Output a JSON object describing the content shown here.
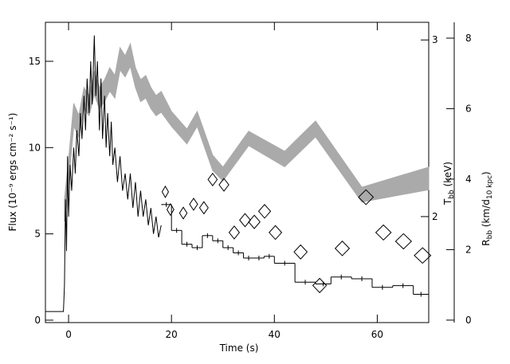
{
  "chart_data": {
    "type": "multi",
    "xlabel": "Time (s)",
    "ylabel": "Flux (10⁻⁹ ergs cm⁻² s⁻¹)",
    "y2label": [
      "T",
      "bb",
      " (keV)"
    ],
    "y3label": [
      "R",
      "bb",
      " (km/d",
      "10 kpc",
      ")"
    ],
    "xlim": [
      -4.5,
      70
    ],
    "xticks": [
      0,
      20,
      40,
      60
    ],
    "ylim": [
      -0.14,
      17.26
    ],
    "yticks": [
      0,
      5,
      10,
      15
    ],
    "y2lim": [
      1.4,
      3.1
    ],
    "y2ticks": [
      2,
      3
    ],
    "y3lim": [
      -0.07,
      8.45
    ],
    "y3ticks": [
      0,
      2,
      4,
      6,
      8
    ],
    "series": [
      {
        "type": "band",
        "axis": "y3",
        "color": "#aaaaaa",
        "x": [
          -0.8,
          0,
          1,
          2,
          3,
          4,
          5,
          6,
          7,
          8,
          9,
          10,
          11,
          12,
          13,
          14,
          15,
          16,
          17,
          18,
          20,
          23,
          25,
          28,
          30,
          35,
          42,
          48,
          57,
          70
        ],
        "high": [
          3.43,
          4.56,
          6.15,
          5.81,
          6.6,
          6.37,
          7.05,
          6.6,
          6.82,
          7.16,
          6.94,
          7.73,
          7.5,
          7.84,
          7.16,
          6.82,
          6.94,
          6.6,
          6.37,
          6.49,
          5.92,
          5.42,
          5.92,
          4.68,
          4.34,
          5.36,
          4.79,
          5.65,
          3.77,
          4.34
        ],
        "low": [
          2.8,
          3.9,
          5.5,
          5.2,
          6.0,
          5.8,
          6.4,
          6.0,
          6.2,
          6.5,
          6.3,
          7.1,
          6.9,
          7.2,
          6.6,
          6.2,
          6.3,
          6.0,
          5.8,
          5.9,
          5.5,
          5.0,
          5.5,
          4.25,
          3.95,
          4.95,
          4.35,
          5.2,
          3.35,
          3.7
        ]
      },
      {
        "type": "line",
        "color": "#000000",
        "x": [
          -4.5,
          -1,
          -0.8,
          -0.6,
          -0.4,
          -0.2,
          0,
          0.3,
          0.6,
          1,
          1.3,
          1.6,
          2,
          2.3,
          2.6,
          3,
          3.3,
          3.6,
          4,
          4.3,
          4.6,
          5,
          5.3,
          5.6,
          6,
          6.3,
          6.6,
          7,
          7.3,
          7.6,
          8,
          8.3,
          8.6,
          9,
          9.5,
          10,
          10.5,
          11,
          11.5,
          12,
          12.5,
          13,
          13.5,
          14,
          14.5,
          15,
          15.5,
          16,
          16.5,
          17,
          17.5,
          18
        ],
        "values": [
          0.5,
          0.5,
          2,
          7,
          4,
          9.5,
          6,
          9,
          7.5,
          10,
          8.5,
          11,
          9.5,
          12,
          10.5,
          13,
          11,
          14,
          12,
          15,
          12.5,
          16.5,
          13,
          15,
          11,
          14,
          10.5,
          13,
          10,
          12,
          9.5,
          11.5,
          9,
          10,
          8,
          9.5,
          7.5,
          8.5,
          7,
          8.5,
          6.5,
          8,
          6,
          7.5,
          6,
          7,
          5.5,
          6.5,
          5,
          6,
          4.8,
          5.5
        ]
      },
      {
        "type": "step",
        "color": "#000000",
        "bins": [
          18,
          20,
          22,
          24,
          26,
          28,
          30,
          32,
          34,
          36,
          38,
          40,
          44,
          48,
          51,
          55,
          59,
          63,
          67,
          70
        ],
        "values": [
          6.7,
          5.2,
          4.4,
          4.2,
          4.9,
          4.6,
          4.2,
          3.9,
          3.6,
          3.6,
          3.7,
          3.3,
          2.2,
          2.1,
          2.5,
          2.4,
          1.9,
          2.0,
          1.5
        ]
      },
      {
        "type": "scatter",
        "axis": "y2",
        "color": "#000000",
        "x": [
          18.8,
          19.8,
          22.3,
          24.3,
          26.3,
          28,
          30.2,
          32.2,
          34.3,
          36.1,
          38.1,
          40.2,
          45.1,
          48.8,
          53.2,
          57.8,
          61.2,
          65.1,
          68.8
        ],
        "values": [
          2.14,
          2.04,
          2.02,
          2.07,
          2.05,
          2.21,
          2.18,
          1.91,
          1.98,
          1.97,
          2.03,
          1.91,
          1.8,
          1.61,
          1.82,
          2.11,
          1.91,
          1.86,
          1.78
        ]
      }
    ]
  }
}
